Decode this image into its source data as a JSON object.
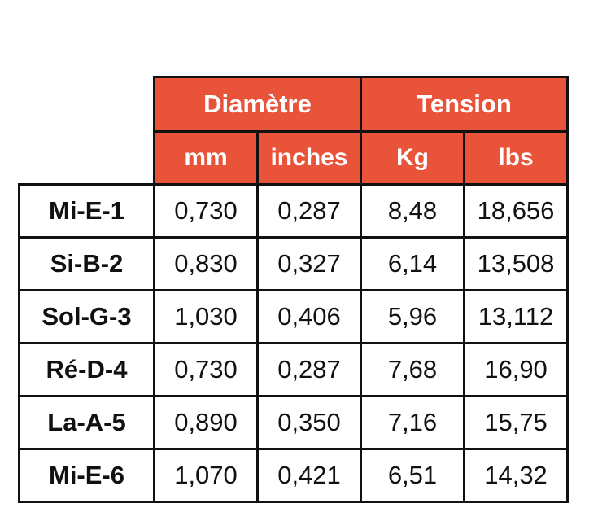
{
  "colors": {
    "header_bg": "#e8533a",
    "header_text": "#ffffff",
    "border": "#111111",
    "cell_text": "#111111"
  },
  "table": {
    "group_headers": [
      "Diamètre",
      "Tension"
    ],
    "sub_headers": [
      "mm",
      "inches",
      "Kg",
      "lbs"
    ],
    "rows": [
      {
        "label": "Mi-E-1",
        "values": [
          "0,730",
          "0,287",
          "8,48",
          "18,656"
        ]
      },
      {
        "label": "Si-B-2",
        "values": [
          "0,830",
          "0,327",
          "6,14",
          "13,508"
        ]
      },
      {
        "label": "Sol-G-3",
        "values": [
          "1,030",
          "0,406",
          "5,96",
          "13,112"
        ]
      },
      {
        "label": "Ré-D-4",
        "values": [
          "0,730",
          "0,287",
          "7,68",
          "16,90"
        ]
      },
      {
        "label": "La-A-5",
        "values": [
          "0,890",
          "0,350",
          "7,16",
          "15,75"
        ]
      },
      {
        "label": "Mi-E-6",
        "values": [
          "1,070",
          "0,421",
          "6,51",
          "14,32"
        ]
      }
    ]
  }
}
